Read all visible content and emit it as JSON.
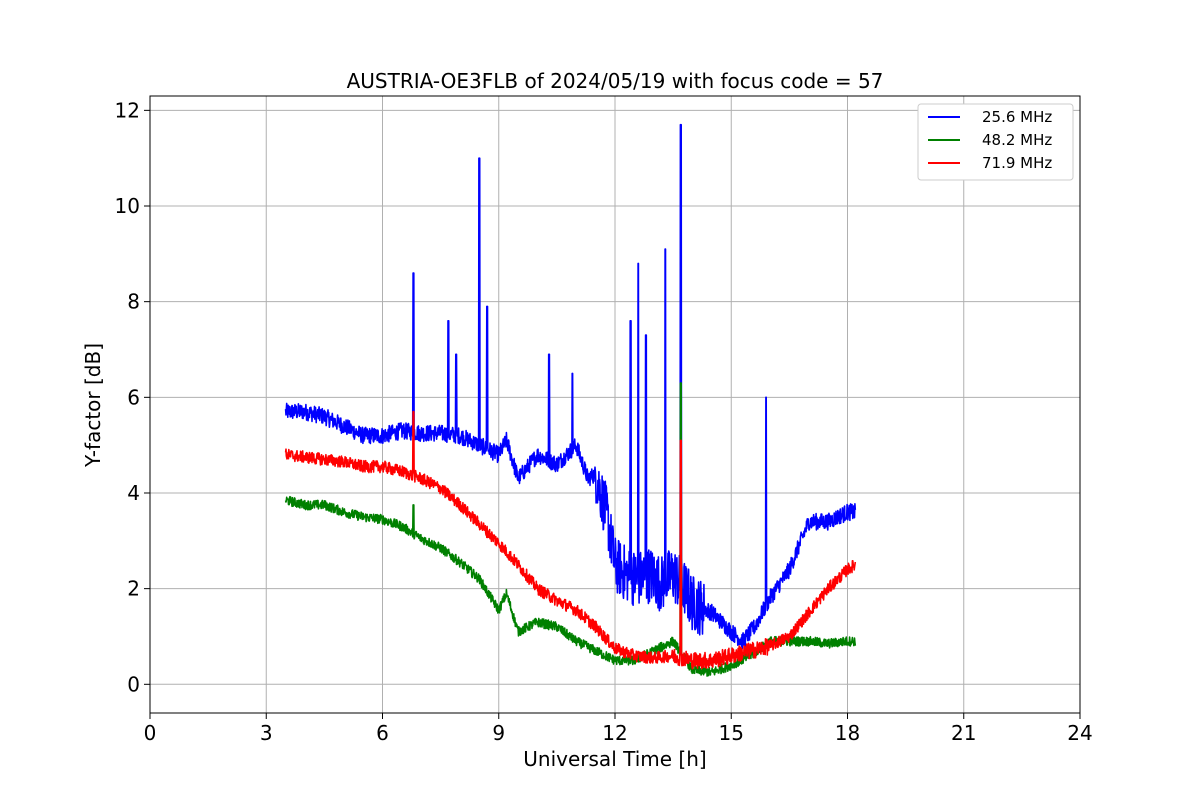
{
  "chart_data": {
    "type": "line",
    "title": "AUSTRIA-OE3FLB of 2024/05/19 with focus code = 57",
    "xlabel": "Universal Time [h]",
    "ylabel": "Y-factor [dB]",
    "xlim": [
      0,
      24
    ],
    "ylim": [
      -0.6,
      12.3
    ],
    "xticks": [
      0,
      3,
      6,
      9,
      12,
      15,
      18,
      21,
      24
    ],
    "yticks": [
      0,
      2,
      4,
      6,
      8,
      10,
      12
    ],
    "grid": true,
    "legend_position": "top-right",
    "series": [
      {
        "name": "25.6 MHz",
        "color": "#0000ff",
        "x": [
          3.5,
          4.0,
          4.5,
          5.0,
          5.5,
          6.0,
          6.5,
          7.0,
          7.5,
          8.0,
          8.5,
          9.0,
          9.2,
          9.5,
          10.0,
          10.5,
          11.0,
          11.3,
          11.5,
          11.8,
          12.0,
          12.3,
          12.6,
          12.9,
          13.2,
          13.5,
          13.8,
          14.0,
          14.5,
          15.0,
          15.3,
          15.6,
          16.0,
          16.5,
          17.0,
          17.5,
          18.0,
          18.2
        ],
        "y": [
          5.7,
          5.7,
          5.6,
          5.4,
          5.2,
          5.2,
          5.3,
          5.25,
          5.25,
          5.2,
          5.0,
          4.8,
          5.1,
          4.3,
          4.8,
          4.6,
          5.0,
          4.3,
          4.4,
          3.5,
          2.5,
          2.3,
          2.2,
          2.3,
          2.1,
          2.3,
          2.0,
          1.7,
          1.5,
          1.1,
          0.9,
          1.2,
          1.8,
          2.4,
          3.4,
          3.4,
          3.6,
          3.6
        ],
        "spikes": [
          {
            "x": 6.8,
            "y": 8.6
          },
          {
            "x": 7.7,
            "y": 7.6
          },
          {
            "x": 7.9,
            "y": 6.9
          },
          {
            "x": 8.5,
            "y": 11.0
          },
          {
            "x": 8.7,
            "y": 7.9
          },
          {
            "x": 10.3,
            "y": 6.9
          },
          {
            "x": 10.9,
            "y": 6.5
          },
          {
            "x": 12.4,
            "y": 7.6
          },
          {
            "x": 12.6,
            "y": 8.8
          },
          {
            "x": 12.8,
            "y": 7.3
          },
          {
            "x": 13.3,
            "y": 9.1
          },
          {
            "x": 13.7,
            "y": 11.7
          },
          {
            "x": 15.9,
            "y": 6.0
          }
        ]
      },
      {
        "name": "48.2 MHz",
        "color": "#008000",
        "x": [
          3.5,
          4.0,
          4.5,
          5.0,
          5.5,
          6.0,
          6.5,
          7.0,
          7.5,
          8.0,
          8.5,
          9.0,
          9.2,
          9.5,
          10.0,
          10.5,
          11.0,
          11.5,
          12.0,
          12.5,
          13.0,
          13.5,
          14.0,
          14.5,
          15.0,
          15.5,
          16.0,
          16.5,
          17.0,
          17.5,
          18.0,
          18.2
        ],
        "y": [
          3.85,
          3.75,
          3.75,
          3.6,
          3.5,
          3.45,
          3.3,
          3.05,
          2.85,
          2.55,
          2.2,
          1.55,
          1.9,
          1.1,
          1.3,
          1.2,
          0.9,
          0.7,
          0.5,
          0.5,
          0.7,
          0.9,
          0.3,
          0.25,
          0.4,
          0.6,
          0.9,
          0.9,
          0.9,
          0.85,
          0.9,
          0.9
        ],
        "spikes": [
          {
            "x": 6.8,
            "y": 3.75
          },
          {
            "x": 13.7,
            "y": 6.3
          }
        ]
      },
      {
        "name": "71.9 MHz",
        "color": "#ff0000",
        "x": [
          3.5,
          4.0,
          4.5,
          5.0,
          5.5,
          6.0,
          6.5,
          7.0,
          7.5,
          8.0,
          8.5,
          9.0,
          9.5,
          10.0,
          10.5,
          11.0,
          11.5,
          12.0,
          12.5,
          13.0,
          13.5,
          14.0,
          14.5,
          15.0,
          15.5,
          16.0,
          16.5,
          17.0,
          17.5,
          18.0,
          18.2
        ],
        "y": [
          4.8,
          4.75,
          4.7,
          4.65,
          4.55,
          4.55,
          4.45,
          4.3,
          4.1,
          3.75,
          3.35,
          2.95,
          2.5,
          2.0,
          1.75,
          1.55,
          1.2,
          0.75,
          0.6,
          0.55,
          0.6,
          0.5,
          0.5,
          0.6,
          0.7,
          0.8,
          1.0,
          1.5,
          2.0,
          2.4,
          2.5
        ],
        "spikes": [
          {
            "x": 6.8,
            "y": 5.7
          },
          {
            "x": 13.7,
            "y": 5.1
          }
        ]
      }
    ]
  }
}
